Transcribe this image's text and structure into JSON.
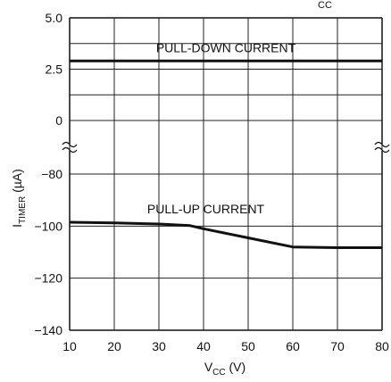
{
  "chart_data": {
    "type": "line",
    "xlabel_main": "V",
    "xlabel_sub": "CC",
    "xlabel_unit": " (V)",
    "ylabel_main": "I",
    "ylabel_sub": "TIMER",
    "ylabel_unit": " (µA)",
    "title_fragment": "CC",
    "x_ticks": [
      "10",
      "20",
      "30",
      "40",
      "50",
      "60",
      "70",
      "80"
    ],
    "y_ticks_upper": [
      "5.0",
      "2.5",
      "0"
    ],
    "y_ticks_lower": [
      "−80",
      "−100",
      "−120",
      "−140"
    ],
    "xlim": [
      10,
      80
    ],
    "ylim_upper": [
      0,
      5
    ],
    "ylim_lower": [
      -140,
      -80
    ],
    "broken_axis": true,
    "grid": true,
    "series": [
      {
        "name": "PULL-DOWN CURRENT",
        "panel": "upper",
        "x": [
          10,
          80
        ],
        "y": [
          2.9,
          2.9
        ]
      },
      {
        "name": "PULL-UP CURRENT",
        "panel": "lower",
        "x": [
          10,
          20,
          30,
          37,
          40,
          50,
          60,
          70,
          80
        ],
        "y": [
          -98.5,
          -98.8,
          -99.2,
          -99.8,
          -101,
          -104.5,
          -108,
          -108.3,
          -108.3
        ]
      }
    ]
  }
}
